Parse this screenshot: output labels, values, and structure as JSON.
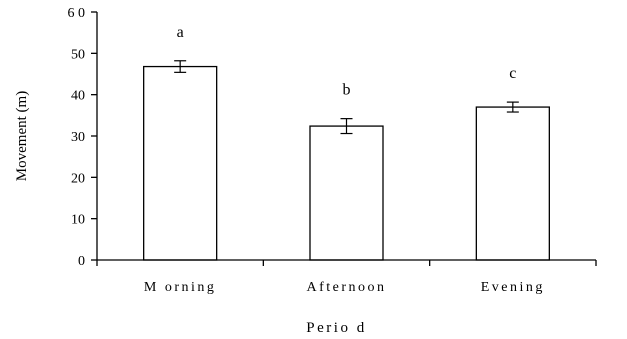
{
  "chart_data": {
    "type": "bar",
    "categories": [
      "M orning",
      "Afternoon",
      "Evening"
    ],
    "values": [
      46.8,
      32.4,
      37.0
    ],
    "errors": [
      1.4,
      1.8,
      1.2
    ],
    "significance_labels": [
      "a",
      "b",
      "c"
    ],
    "xlabel": "Perio d",
    "ylabel": "Movement (m)",
    "ylim": [
      0,
      60
    ],
    "yticks": [
      0,
      10,
      20,
      30,
      40,
      50,
      60
    ],
    "ytick_labels": [
      "0",
      "10",
      "20",
      "30",
      "40",
      "50",
      "6 0"
    ],
    "grid": false,
    "legend": "none",
    "bar_fill": "#ffffff",
    "bar_stroke": "#000000"
  }
}
